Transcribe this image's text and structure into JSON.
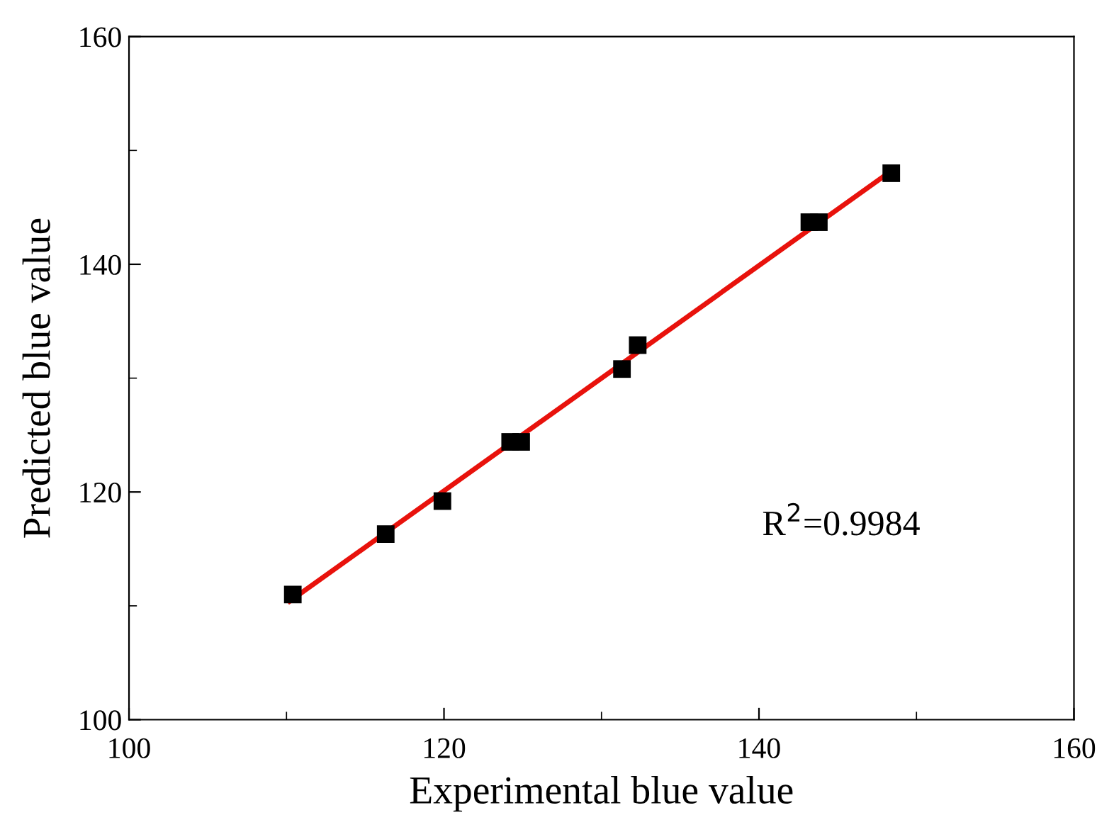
{
  "chart_data": {
    "type": "scatter",
    "xlabel": "Experimental blue value",
    "ylabel": "Predicted blue value",
    "series": [
      {
        "color": "#000000",
        "marker": "square",
        "x": [
          110.4,
          116.3,
          119.9,
          124.2,
          124.9,
          131.3,
          132.3,
          143.2,
          143.8,
          148.4
        ],
        "values": [
          111.0,
          116.3,
          119.2,
          124.4,
          124.4,
          130.8,
          132.9,
          143.7,
          143.7,
          148.0
        ]
      },
      {
        "type": "line",
        "color": "#e8120c",
        "marker": "none",
        "line_style": "solid",
        "x": [
          110.2,
          148.5
        ],
        "values": [
          110.4,
          148.3
        ]
      }
    ],
    "annotations": [
      "R$^{2}$=0.9984"
    ],
    "xlim": [
      100,
      160
    ],
    "ylim": [
      100,
      160
    ],
    "xticks": [
      100,
      120,
      140,
      160
    ],
    "yticks": [
      100,
      120,
      140,
      160
    ],
    "grid": false,
    "legend": false
  }
}
